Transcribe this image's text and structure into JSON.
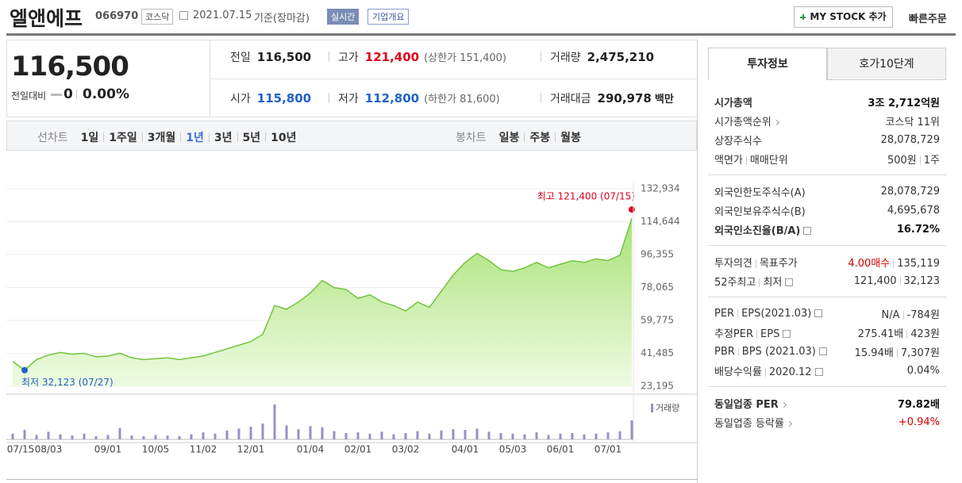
{
  "header": {
    "title": "엘앤에프",
    "code": "066970",
    "market": "코스닥",
    "date": "2021.07.15",
    "basis": "기준(장마감)",
    "realtime": "실시간",
    "overview": "기업개요",
    "mystock": "MY STOCK 추가",
    "quick_order": "빠른주문"
  },
  "summary": {
    "price": "116,500",
    "change_label": "전일대비",
    "change": "0",
    "change_rate": "0.00%",
    "stats": [
      {
        "label": "전일",
        "value": "116,500",
        "color": "#222"
      },
      {
        "label": "고가",
        "value": "121,400",
        "note": "(상한가 151,400)",
        "color": "#e0001b"
      },
      {
        "label": "거래량",
        "value": "2,475,210",
        "color": "#222"
      },
      {
        "label": "시가",
        "value": "115,800",
        "color": "#1f62c9"
      },
      {
        "label": "저가",
        "value": "112,800",
        "note": "(하한가 81,600)",
        "color": "#1f62c9"
      },
      {
        "label": "거래대금",
        "value": "290,978",
        "unit": "백만",
        "color": "#222"
      }
    ]
  },
  "periods": {
    "line_label": "선차트",
    "line": [
      "1일",
      "1주일",
      "3개월",
      "1년",
      "3년",
      "5년",
      "10년"
    ],
    "active_line": 3,
    "candle_label": "봉차트",
    "candle": [
      "일봉",
      "주봉",
      "월봉"
    ]
  },
  "tabs": [
    "투자정보",
    "호가10단계"
  ],
  "info": [
    [
      {
        "label": [
          "시가총액"
        ],
        "value": [
          "3조 2,712억원"
        ],
        "bold": true
      },
      {
        "label": [
          "시가총액순위"
        ],
        "link": true,
        "value": [
          "코스닥 11위"
        ]
      },
      {
        "label": [
          "상장주식수"
        ],
        "value": [
          "28,078,729"
        ]
      },
      {
        "label": [
          "액면가",
          "매매단위"
        ],
        "value": [
          "500원",
          "1주"
        ]
      }
    ],
    [
      {
        "label": [
          "외국인한도주식수(A)"
        ],
        "value": [
          "28,078,729"
        ]
      },
      {
        "label": [
          "외국인보유주식수(B)"
        ],
        "value": [
          "4,695,678"
        ]
      },
      {
        "label": [
          "외국인소진율(B/A)"
        ],
        "help": true,
        "value": [
          "16.72%"
        ],
        "bold": true
      }
    ],
    [
      {
        "label": [
          "투자의견",
          "목표주가"
        ],
        "value": [
          "4.00매수",
          "135,119"
        ],
        "colors": [
          "#d40000",
          "#333"
        ]
      },
      {
        "label": [
          "52주최고",
          "최저"
        ],
        "help": true,
        "value": [
          "121,400",
          "32,123"
        ]
      }
    ],
    [
      {
        "label": [
          "PER",
          "EPS(2021.03)"
        ],
        "help": true,
        "value": [
          "N/A",
          "-784원"
        ]
      },
      {
        "label": [
          "추정PER",
          "EPS"
        ],
        "help": true,
        "value": [
          "275.41배",
          "423원"
        ]
      },
      {
        "label": [
          "PBR",
          "BPS (2021.03)"
        ],
        "help": true,
        "value": [
          "15.94배",
          "7,307원"
        ]
      },
      {
        "label": [
          "배당수익률",
          "2020.12"
        ],
        "help": true,
        "value": [
          "0.04%"
        ]
      }
    ],
    [
      {
        "label": [
          "동일업종 PER"
        ],
        "link": true,
        "value": [
          "79.82배"
        ],
        "bold": true
      },
      {
        "label": [
          "동일업종 등락률"
        ],
        "link": true,
        "value": [
          "+0.94%"
        ],
        "colors": [
          "#d40000"
        ]
      }
    ]
  ],
  "chart_data": {
    "type": "line",
    "color": "#72c43f",
    "fill": "#b9ea8c",
    "categories": [
      "07/15",
      null,
      null,
      "08/03",
      null,
      null,
      null,
      null,
      "09/01",
      null,
      null,
      null,
      "10/05",
      null,
      null,
      null,
      "11/02",
      null,
      null,
      null,
      "12/01",
      null,
      null,
      null,
      null,
      "01/04",
      null,
      null,
      null,
      "02/01",
      null,
      null,
      null,
      "03/02",
      null,
      null,
      null,
      null,
      "04/01",
      null,
      null,
      null,
      "05/03",
      null,
      null,
      null,
      "06/01",
      null,
      null,
      null,
      "07/01",
      null,
      null
    ],
    "values": [
      37000,
      32123,
      38000,
      40500,
      42000,
      41000,
      41500,
      39500,
      40000,
      41500,
      39000,
      38000,
      38500,
      39000,
      38000,
      39000,
      40000,
      42000,
      44000,
      46000,
      48000,
      52000,
      68000,
      66000,
      70000,
      75000,
      82000,
      78000,
      77000,
      72000,
      74000,
      70000,
      68000,
      65000,
      70000,
      67000,
      76000,
      85000,
      92000,
      97000,
      93000,
      88000,
      87000,
      89000,
      92000,
      89000,
      91000,
      93000,
      92000,
      94000,
      93000,
      96000,
      116500
    ],
    "ylim": [
      23195,
      132934
    ],
    "yticks": [
      {
        "value": 132934,
        "label": "132,934"
      },
      {
        "value": 114644,
        "label": "114,644"
      },
      {
        "value": 96355,
        "label": "96,355"
      },
      {
        "value": 78065,
        "label": "78,065"
      },
      {
        "value": 59775,
        "label": "59,775"
      },
      {
        "value": 41485,
        "label": "41,485"
      },
      {
        "value": 23195,
        "label": "23,195"
      }
    ],
    "grid": true,
    "high": {
      "value": 121400,
      "label": "최고 121,400 (07/15)",
      "color": "#e0001b"
    },
    "low": {
      "value": 32123,
      "label": "최저 32,123 (07/27)",
      "color": "#1f62c9"
    },
    "volume": {
      "label": "거래량",
      "color": "#9a8fc7",
      "ylim": [
        0,
        6000000
      ],
      "values": [
        900000,
        1500000,
        700000,
        1200000,
        800000,
        600000,
        900000,
        500000,
        700000,
        1800000,
        600000,
        500000,
        700000,
        600000,
        500000,
        800000,
        1100000,
        900000,
        1400000,
        1700000,
        2000000,
        2500000,
        5500000,
        2200000,
        1600000,
        2100000,
        1900000,
        1300000,
        1000000,
        1100000,
        900000,
        1200000,
        800000,
        1000000,
        1300000,
        900000,
        1400000,
        1600000,
        1500000,
        1700000,
        1200000,
        1000000,
        900000,
        800000,
        1100000,
        700000,
        900000,
        1000000,
        800000,
        900000,
        1100000,
        1300000,
        3000000
      ]
    }
  }
}
